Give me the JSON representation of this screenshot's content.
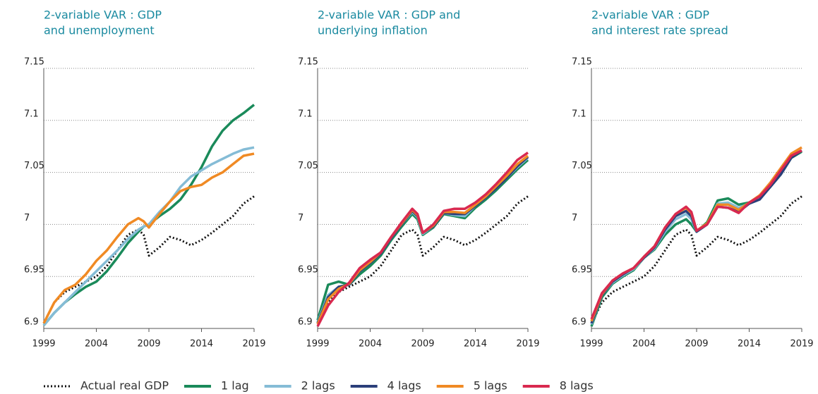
{
  "chart_data": [
    {
      "type": "line",
      "title": [
        "2-variable VAR : GDP",
        "and unemployment"
      ],
      "x": [
        1999,
        2000,
        2001,
        2002,
        2003,
        2004,
        2005,
        2006,
        2007,
        2008,
        2008.5,
        2009,
        2010,
        2011,
        2012,
        2013,
        2014,
        2015,
        2016,
        2017,
        2018,
        2019
      ],
      "xlim": [
        1999,
        2019
      ],
      "xticks": [
        1999,
        2004,
        2009,
        2014,
        2019
      ],
      "ylim": [
        6.9,
        7.15
      ],
      "yticks": [
        6.9,
        6.95,
        7,
        7.05,
        7.1,
        7.15
      ],
      "grid": true,
      "series": [
        {
          "name": "Actual real GDP",
          "color": "#111111",
          "dashed": true,
          "values": [
            6.905,
            6.925,
            6.935,
            6.94,
            6.945,
            6.95,
            6.96,
            6.975,
            6.99,
            6.995,
            6.99,
            6.97,
            6.978,
            6.988,
            6.985,
            6.98,
            6.985,
            6.992,
            7.0,
            7.008,
            7.02,
            7.027
          ]
        },
        {
          "name": "1 lag",
          "color": "#1a8a5a",
          "values": [
            6.903,
            6.915,
            6.925,
            6.933,
            6.94,
            6.945,
            6.955,
            6.968,
            6.982,
            6.993,
            6.998,
            7.0,
            7.008,
            7.015,
            7.024,
            7.038,
            7.055,
            7.075,
            7.09,
            7.1,
            7.107,
            7.115
          ]
        },
        {
          "name": "2 lags",
          "color": "#85bcd6",
          "values": [
            6.903,
            6.915,
            6.925,
            6.935,
            6.945,
            6.955,
            6.965,
            6.975,
            6.986,
            6.995,
            6.998,
            7.0,
            7.012,
            7.022,
            7.036,
            7.046,
            7.052,
            7.058,
            7.063,
            7.068,
            7.072,
            7.074
          ]
        },
        {
          "name": "5 lags",
          "color": "#f08a24",
          "values": [
            6.905,
            6.925,
            6.937,
            6.942,
            6.952,
            6.965,
            6.975,
            6.988,
            7.0,
            7.006,
            7.003,
            6.997,
            7.01,
            7.022,
            7.032,
            7.036,
            7.038,
            7.045,
            7.05,
            7.058,
            7.066,
            7.068
          ]
        }
      ]
    },
    {
      "type": "line",
      "title": [
        "2-variable VAR : GDP and",
        "underlying inflation"
      ],
      "x": [
        1999,
        2000,
        2001,
        2002,
        2003,
        2004,
        2005,
        2006,
        2007,
        2008,
        2008.5,
        2009,
        2010,
        2011,
        2012,
        2013,
        2014,
        2015,
        2016,
        2017,
        2018,
        2019
      ],
      "xlim": [
        1999,
        2019
      ],
      "xticks": [
        1999,
        2004,
        2009,
        2014,
        2019
      ],
      "ylim": [
        6.9,
        7.15
      ],
      "yticks": [
        6.9,
        6.95,
        7,
        7.05,
        7.1,
        7.15
      ],
      "grid": true,
      "series": [
        {
          "name": "Actual real GDP",
          "color": "#111111",
          "dashed": true,
          "values": [
            6.905,
            6.925,
            6.935,
            6.94,
            6.945,
            6.95,
            6.96,
            6.975,
            6.99,
            6.995,
            6.99,
            6.97,
            6.978,
            6.988,
            6.985,
            6.98,
            6.985,
            6.992,
            7.0,
            7.008,
            7.02,
            7.027
          ]
        },
        {
          "name": "1 lag",
          "color": "#1a8a5a",
          "values": [
            6.908,
            6.942,
            6.945,
            6.942,
            6.952,
            6.96,
            6.97,
            6.985,
            6.998,
            7.01,
            7.005,
            6.99,
            6.997,
            7.01,
            7.008,
            7.006,
            7.016,
            7.024,
            7.033,
            7.043,
            7.053,
            7.062
          ]
        },
        {
          "name": "2 lags",
          "color": "#85bcd6",
          "values": [
            6.906,
            6.932,
            6.94,
            6.942,
            6.955,
            6.963,
            6.972,
            6.987,
            7.0,
            7.012,
            7.007,
            6.991,
            6.998,
            7.011,
            7.009,
            7.008,
            7.018,
            7.026,
            7.035,
            7.045,
            7.055,
            7.064
          ]
        },
        {
          "name": "4 lags",
          "color": "#2b3f7a",
          "values": [
            6.905,
            6.93,
            6.94,
            6.942,
            6.955,
            6.963,
            6.972,
            6.987,
            7.0,
            7.013,
            7.008,
            6.992,
            6.998,
            7.011,
            7.01,
            7.01,
            7.018,
            7.026,
            7.035,
            7.045,
            7.056,
            7.065
          ]
        },
        {
          "name": "5 lags",
          "color": "#f08a24",
          "values": [
            6.904,
            6.928,
            6.938,
            6.943,
            6.956,
            6.964,
            6.973,
            6.988,
            7.001,
            7.014,
            7.009,
            6.992,
            6.999,
            7.012,
            7.012,
            7.011,
            7.019,
            7.027,
            7.037,
            7.047,
            7.058,
            7.066
          ]
        },
        {
          "name": "8 lags",
          "color": "#d9294f",
          "values": [
            6.902,
            6.922,
            6.935,
            6.944,
            6.958,
            6.966,
            6.973,
            6.988,
            7.002,
            7.015,
            7.01,
            6.992,
            7.0,
            7.013,
            7.015,
            7.015,
            7.021,
            7.029,
            7.039,
            7.05,
            7.062,
            7.069
          ]
        }
      ]
    },
    {
      "type": "line",
      "title": [
        "2-variable VAR : GDP",
        "and interest rate spread"
      ],
      "x": [
        1999,
        2000,
        2001,
        2002,
        2003,
        2004,
        2005,
        2006,
        2007,
        2008,
        2008.5,
        2009,
        2010,
        2011,
        2012,
        2013,
        2014,
        2015,
        2016,
        2017,
        2018,
        2019
      ],
      "xlim": [
        1999,
        2019
      ],
      "xticks": [
        1999,
        2004,
        2009,
        2014,
        2019
      ],
      "ylim": [
        6.9,
        7.15
      ],
      "yticks": [
        6.9,
        6.95,
        7,
        7.05,
        7.1,
        7.15
      ],
      "grid": true,
      "series": [
        {
          "name": "Actual real GDP",
          "color": "#111111",
          "dashed": true,
          "values": [
            6.905,
            6.925,
            6.935,
            6.94,
            6.945,
            6.95,
            6.96,
            6.975,
            6.99,
            6.995,
            6.99,
            6.97,
            6.978,
            6.988,
            6.985,
            6.98,
            6.985,
            6.992,
            7.0,
            7.008,
            7.02,
            7.027
          ]
        },
        {
          "name": "1 lag",
          "color": "#1a8a5a",
          "values": [
            6.902,
            6.93,
            6.943,
            6.95,
            6.956,
            6.968,
            6.976,
            6.99,
            7.0,
            7.005,
            7.0,
            6.993,
            7.002,
            7.023,
            7.025,
            7.019,
            7.021,
            7.025,
            7.036,
            7.048,
            7.064,
            7.07
          ]
        },
        {
          "name": "2 lags",
          "color": "#85bcd6",
          "values": [
            6.904,
            6.932,
            6.944,
            6.951,
            6.957,
            6.968,
            6.977,
            6.993,
            7.005,
            7.01,
            7.005,
            6.993,
            7.0,
            7.02,
            7.021,
            7.016,
            7.02,
            7.025,
            7.037,
            7.049,
            7.065,
            7.071
          ]
        },
        {
          "name": "4 lags",
          "color": "#2b3f7a",
          "values": [
            6.905,
            6.932,
            6.945,
            6.952,
            6.958,
            6.968,
            6.978,
            6.995,
            7.008,
            7.013,
            7.008,
            6.993,
            7.0,
            7.017,
            7.016,
            7.012,
            7.02,
            7.024,
            7.036,
            7.048,
            7.064,
            7.071
          ]
        },
        {
          "name": "5 lags",
          "color": "#f08a24",
          "values": [
            6.907,
            6.933,
            6.946,
            6.953,
            6.958,
            6.969,
            6.979,
            6.997,
            7.01,
            7.016,
            7.011,
            6.994,
            7.001,
            7.019,
            7.019,
            7.014,
            7.021,
            7.028,
            7.04,
            7.054,
            7.068,
            7.074
          ]
        },
        {
          "name": "8 lags",
          "color": "#d9294f",
          "values": [
            6.909,
            6.934,
            6.946,
            6.953,
            6.958,
            6.969,
            6.979,
            6.997,
            7.01,
            7.017,
            7.012,
            6.994,
            7.0,
            7.017,
            7.016,
            7.011,
            7.021,
            7.027,
            7.038,
            7.052,
            7.066,
            7.071
          ]
        }
      ]
    }
  ]
}
